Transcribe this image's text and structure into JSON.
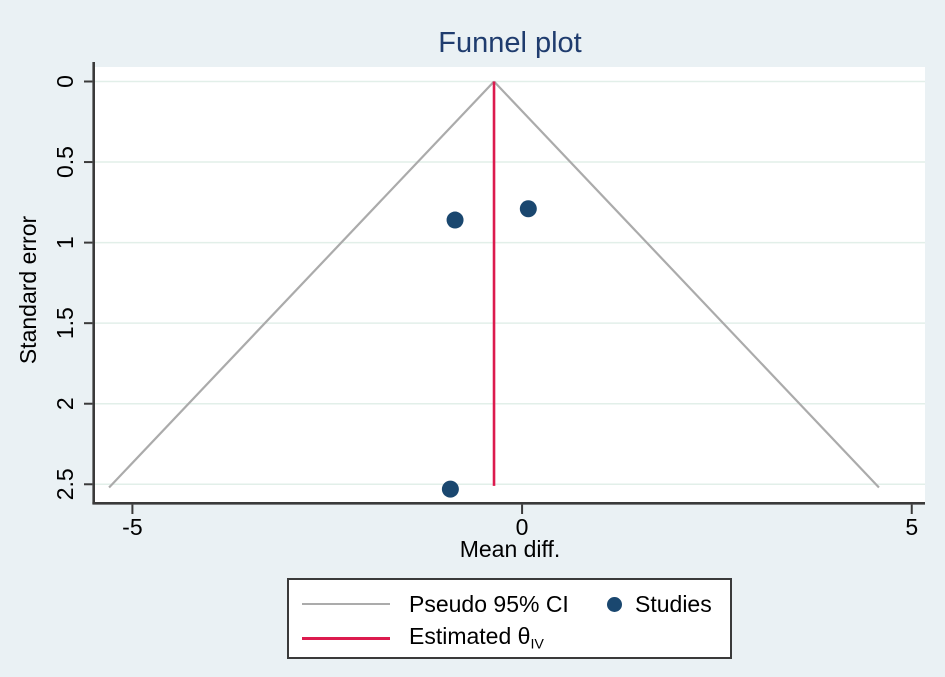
{
  "figure": {
    "title": "Funnel plot",
    "x_axis_label": "Mean diff.",
    "y_axis_label": "Standard error"
  },
  "legend": {
    "pseudo_ci_label": "Pseudo 95% CI",
    "studies_label": "Studies",
    "estimated_label": "Estimated θ",
    "estimated_subscript": "IV"
  },
  "colors": {
    "background": "#eaf1f4",
    "plot_background": "#ffffff",
    "gridline": "#e2efe9",
    "axis": "#3a3a3a",
    "pseudo_ci_line": "#ababab",
    "estimate_line": "#dc1b4e",
    "study_marker": "#1a476f",
    "title_text": "#1f3c6e",
    "label_text": "#000000"
  },
  "chart_data": {
    "type": "scatter",
    "subtype": "funnel-plot",
    "title": "Funnel plot",
    "xlabel": "Mean diff.",
    "ylabel": "Standard error",
    "x_ticks": [
      -5,
      0,
      5
    ],
    "y_ticks": [
      0,
      0.5,
      1,
      1.5,
      2,
      2.5
    ],
    "xlim": [
      -5.48,
      5.17
    ],
    "se_lim": [
      -0.09,
      2.61
    ],
    "y_axis_inverted": true,
    "grid": true,
    "legend_position": "bottom",
    "estimate": -0.36,
    "pseudo_ci_z": 1.96,
    "funnel_se_max": 2.52,
    "estimate_line_se_range": [
      0,
      2.51
    ],
    "points": [
      {
        "x": -0.86,
        "se": 0.86
      },
      {
        "x": 0.08,
        "se": 0.79
      },
      {
        "x": -0.92,
        "se": 2.53
      }
    ]
  }
}
